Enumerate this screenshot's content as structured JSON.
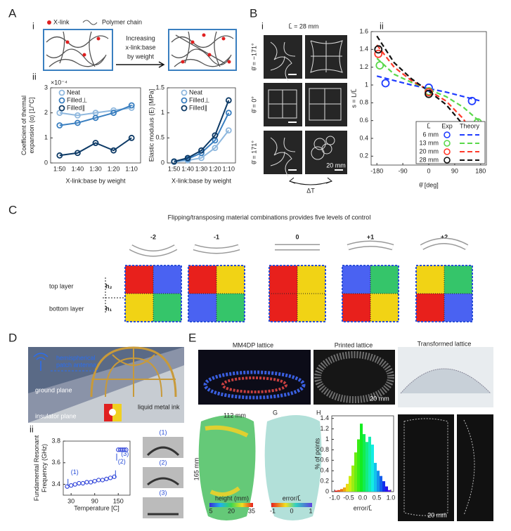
{
  "figure": {
    "a": {
      "label": "A",
      "sub_i": "i",
      "xlink": "X-link",
      "chain": "Polymer chain",
      "arrow_text": [
        "Increasing",
        "x-link:base",
        "by weight"
      ],
      "sub_ii": "ii"
    },
    "b": {
      "label": "B",
      "sub_i": "i",
      "title": "L̄ = 28 mm",
      "rows": [
        "θ̄ = −171°",
        "θ̄ = 0°",
        "θ̄ = 171°"
      ],
      "scale": "20 mm",
      "delta": "ΔT",
      "sub_ii": "ii"
    },
    "c": {
      "label": "C",
      "title": "Flipping/transposing material combinations provides five levels of control",
      "levels": [
        "-2",
        "-1",
        "0",
        "+1",
        "+2"
      ],
      "top": "top layer",
      "bottom": "bottom layer",
      "h2": "h₂",
      "h1": "h₁"
    },
    "d": {
      "label": "D",
      "sub_i": "i",
      "antenna": [
        "hemispherical",
        "patch antenna"
      ],
      "ground": "ground plane",
      "insulator": "insulator plane",
      "ink": "liquid metal ink",
      "sub_ii": "ii",
      "photo_labels": [
        "(1)",
        "(2)",
        "(3)"
      ]
    },
    "e": {
      "label": "E",
      "mm4dp": "MM4DP lattice",
      "printed": "Printed lattice",
      "transformed": "Transformed lattice",
      "scale": "20 mm",
      "width": "112 mm",
      "height": "165 mm",
      "g": "G",
      "h": "H",
      "height_bar": {
        "label": "height (mm)",
        "ticks": [
          "5",
          "20",
          "35"
        ]
      },
      "error_bar": {
        "label": "error/L̄",
        "ticks": [
          "-1",
          "0",
          "1"
        ]
      },
      "scale2": "20 mm"
    }
  },
  "chart_data": [
    {
      "type": "line",
      "multiplier": "×10⁻⁴",
      "ylabel": [
        "Coefficient of thermal",
        "expansion (α) [1/°C]"
      ],
      "xlabel": "X-link:base by weight",
      "categories": [
        "1:50",
        "1:40",
        "1:30",
        "1:20",
        "1:10"
      ],
      "ylim": [
        0,
        3
      ],
      "yticks": [
        0,
        1,
        2,
        3
      ],
      "series": [
        {
          "name": "Neat",
          "color": "#8fb8de",
          "values": [
            2.0,
            1.9,
            2.0,
            2.1,
            2.2
          ]
        },
        {
          "name": "Filled⊥",
          "color": "#3a7fc0",
          "values": [
            1.5,
            1.6,
            1.8,
            2.0,
            2.3
          ]
        },
        {
          "name": "Filled∥",
          "color": "#0d3a66",
          "values": [
            0.3,
            0.4,
            0.8,
            0.5,
            1.0
          ]
        }
      ]
    },
    {
      "type": "line",
      "ylabel": [
        "Elastic modulus (E) [MPa]"
      ],
      "xlabel": "X-link:base by weight",
      "categories": [
        "1:50",
        "1:40",
        "1:30",
        "1:20",
        "1:10"
      ],
      "ylim": [
        0,
        1.5
      ],
      "yticks": [
        0,
        0.5,
        1,
        1.5
      ],
      "series": [
        {
          "name": "Neat",
          "color": "#8fb8de",
          "values": [
            0.02,
            0.05,
            0.1,
            0.3,
            0.65
          ]
        },
        {
          "name": "Filled⊥",
          "color": "#3a7fc0",
          "values": [
            0.03,
            0.08,
            0.2,
            0.45,
            1.0
          ]
        },
        {
          "name": "Filled∥",
          "color": "#0d3a66",
          "values": [
            0.03,
            0.1,
            0.25,
            0.55,
            1.25
          ]
        }
      ]
    },
    {
      "type": "scatter",
      "ylabel": [
        "s = L/L̄"
      ],
      "xlabel": "θ̄ [deg]",
      "xlim": [
        -200,
        200
      ],
      "xticks": [
        -180,
        -90,
        0,
        90,
        180
      ],
      "ylim": [
        0.1,
        1.6
      ],
      "yticks": [
        0.2,
        0.4,
        0.6,
        0.8,
        1,
        1.2,
        1.4,
        1.6
      ],
      "legend_columns": [
        "L̄",
        "Exp",
        "Theory"
      ],
      "series": [
        {
          "name": "6 mm",
          "color": "#1f3cff",
          "x": [
            -150,
            0,
            150
          ],
          "values": [
            1.02,
            0.97,
            0.82
          ]
        },
        {
          "name": "13 mm",
          "color": "#5ad84a",
          "x": [
            -170,
            0,
            170
          ],
          "values": [
            1.22,
            0.93,
            0.58
          ]
        },
        {
          "name": "20 mm",
          "color": "#ff3a2a",
          "x": [
            -175,
            0,
            172
          ],
          "values": [
            1.35,
            0.92,
            0.32
          ]
        },
        {
          "name": "28 mm",
          "color": "#111111",
          "x": [
            -175,
            0,
            175
          ],
          "values": [
            1.4,
            0.9,
            0.2
          ]
        }
      ],
      "theory": [
        {
          "color": "#1f3cff",
          "x": [
            -180,
            -120,
            -60,
            0,
            60,
            120,
            180
          ],
          "values": [
            1.1,
            1.05,
            1.0,
            0.96,
            0.92,
            0.87,
            0.82
          ]
        },
        {
          "color": "#5ad84a",
          "x": [
            -180,
            -120,
            -60,
            0,
            60,
            120,
            180
          ],
          "values": [
            1.3,
            1.12,
            1.03,
            0.95,
            0.87,
            0.75,
            0.58
          ]
        },
        {
          "color": "#ff3a2a",
          "x": [
            -180,
            -120,
            -60,
            0,
            60,
            120,
            180
          ],
          "values": [
            1.45,
            1.2,
            1.05,
            0.94,
            0.82,
            0.62,
            0.3
          ]
        },
        {
          "color": "#111111",
          "x": [
            -180,
            -120,
            -60,
            0,
            60,
            120,
            180
          ],
          "values": [
            1.55,
            1.25,
            1.07,
            0.93,
            0.78,
            0.55,
            0.15
          ]
        }
      ]
    },
    {
      "type": "scatter",
      "ylabel": [
        "Fundamental  Resonant",
        "Frequency (GHz)"
      ],
      "xlabel": "Temperature [C]",
      "xlim": [
        10,
        180
      ],
      "xticks": [
        30,
        90,
        150
      ],
      "ylim": [
        3.3,
        3.8
      ],
      "yticks": [
        3.4,
        3.6,
        3.8
      ],
      "annotations": [
        "(1)",
        "(2)",
        "(3)"
      ],
      "series": [
        {
          "color": "#2b3fd8",
          "x": [
            20,
            30,
            40,
            50,
            60,
            70,
            80,
            90,
            100,
            110,
            120,
            130,
            140,
            150,
            155,
            160,
            165,
            170
          ],
          "values": [
            3.38,
            3.39,
            3.4,
            3.41,
            3.41,
            3.42,
            3.42,
            3.43,
            3.44,
            3.44,
            3.45,
            3.46,
            3.47,
            3.72,
            3.72,
            3.72,
            3.72,
            3.72
          ]
        }
      ]
    },
    {
      "type": "histogram",
      "ylabel": [
        "% of points"
      ],
      "xlabel": "error/L̄",
      "bins": [
        -1.0,
        -0.9,
        -0.8,
        -0.7,
        -0.6,
        -0.5,
        -0.4,
        -0.3,
        -0.2,
        -0.1,
        0,
        0.1,
        0.2,
        0.3,
        0.4,
        0.5,
        0.6,
        0.7,
        0.8,
        0.9,
        1.0
      ],
      "values": [
        0.02,
        0.03,
        0.05,
        0.08,
        0.15,
        0.3,
        0.5,
        0.75,
        1.0,
        1.3,
        1.1,
        0.95,
        1.05,
        0.9,
        0.55,
        0.4,
        0.3,
        0.2,
        0.1,
        0.03
      ],
      "xlim": [
        -1.1,
        1.1
      ],
      "xticks": [
        {
          "value": -1,
          "label": "-1.0"
        },
        -0.5,
        {
          "value": 0,
          "label": "0.0"
        },
        0.5,
        {
          "value": 1,
          "label": "1.0"
        }
      ],
      "ylim": [
        0,
        1.45
      ],
      "yticks": [
        0,
        0.2,
        0.4,
        0.6,
        0.8,
        1,
        1.2,
        1.4
      ]
    }
  ]
}
